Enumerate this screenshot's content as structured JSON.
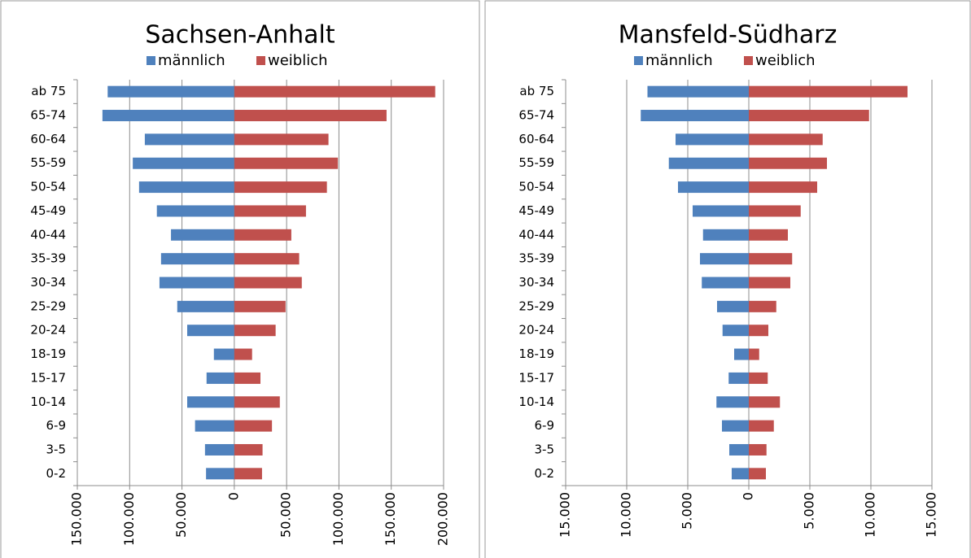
{
  "chart_data": [
    {
      "type": "bar",
      "orientation": "horizontal",
      "title": "Sachsen-Anhalt",
      "categories": [
        "ab 75",
        "65-74",
        "60-64",
        "55-59",
        "50-54",
        "45-49",
        "40-44",
        "35-39",
        "30-34",
        "25-29",
        "20-24",
        "18-19",
        "15-17",
        "10-14",
        "6-9",
        "3-5",
        "0-2"
      ],
      "series": [
        {
          "name": "männlich",
          "color": "#4f81bd",
          "values": [
            -121000,
            -126000,
            -85500,
            -97000,
            -91000,
            -74000,
            -60500,
            -70000,
            -71500,
            -54500,
            -45000,
            -19500,
            -26500,
            -45000,
            -37500,
            -28000,
            -27000
          ]
        },
        {
          "name": "weiblich",
          "color": "#c0504d",
          "values": [
            192000,
            145500,
            90000,
            99000,
            88500,
            68500,
            54500,
            62000,
            64500,
            49000,
            39500,
            17000,
            25000,
            43500,
            36000,
            27000,
            26500
          ]
        }
      ],
      "xlim": [
        -150000,
        200000
      ],
      "xticks": [
        {
          "value": -150000,
          "label": "150.000"
        },
        {
          "value": -100000,
          "label": "100.000"
        },
        {
          "value": -50000,
          "label": "50.000"
        },
        0,
        {
          "value": 50000,
          "label": "50.000"
        },
        {
          "value": 100000,
          "label": "100.000"
        },
        {
          "value": 150000,
          "label": "150.000"
        },
        {
          "value": 200000,
          "label": "200.000"
        }
      ],
      "grid": true,
      "legend": "top"
    },
    {
      "type": "bar",
      "orientation": "horizontal",
      "title": "Mansfeld-Südharz",
      "categories": [
        "ab 75",
        "65-74",
        "60-64",
        "55-59",
        "50-54",
        "45-49",
        "40-44",
        "35-39",
        "30-34",
        "25-29",
        "20-24",
        "18-19",
        "15-17",
        "10-14",
        "6-9",
        "3-5",
        "0-2"
      ],
      "series": [
        {
          "name": "männlich",
          "color": "#4f81bd",
          "values": [
            -8300,
            -8850,
            -6000,
            -6550,
            -5800,
            -4600,
            -3750,
            -4000,
            -3850,
            -2600,
            -2150,
            -1200,
            -1650,
            -2650,
            -2200,
            -1600,
            -1400
          ]
        },
        {
          "name": "weiblich",
          "color": "#c0504d",
          "values": [
            13000,
            9850,
            6050,
            6400,
            5600,
            4250,
            3200,
            3550,
            3400,
            2250,
            1600,
            850,
            1550,
            2550,
            2050,
            1450,
            1400
          ]
        }
      ],
      "xlim": [
        -15000,
        15000
      ],
      "xticks": [
        {
          "value": -15000,
          "label": "15.000"
        },
        {
          "value": -10000,
          "label": "10.000"
        },
        {
          "value": -5000,
          "label": "5.000"
        },
        0,
        {
          "value": 5000,
          "label": "5.000"
        },
        {
          "value": 10000,
          "label": "10.000"
        },
        {
          "value": 15000,
          "label": "15.000"
        }
      ],
      "grid": true,
      "legend": "top"
    }
  ]
}
